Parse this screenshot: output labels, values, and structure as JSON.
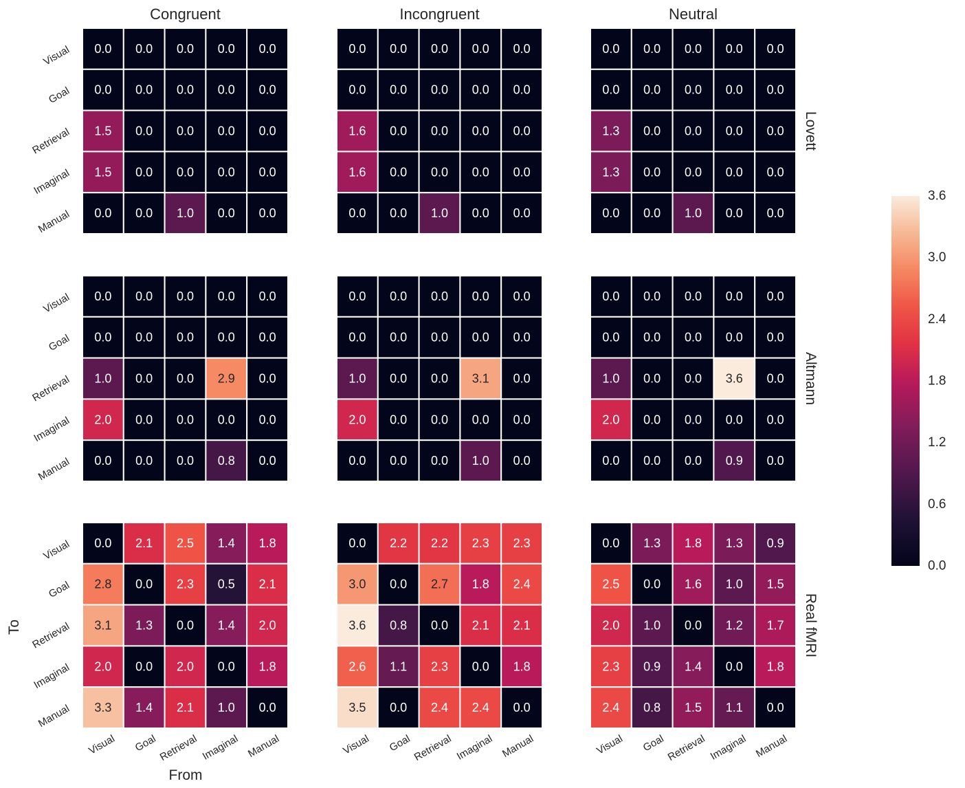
{
  "chart_data": {
    "type": "heatmap",
    "col_titles": [
      "Congruent",
      "Incongruent",
      "Neutral"
    ],
    "row_titles": [
      "Lovett",
      "Altmann",
      "Real fMRI"
    ],
    "x_tick_labels": [
      "Visual",
      "Goal",
      "Retrieval",
      "Imaginal",
      "Manual"
    ],
    "y_tick_labels": [
      "Visual",
      "Goal",
      "Retrieval",
      "Imaginal",
      "Manual"
    ],
    "xlabel": "From",
    "ylabel": "To",
    "colorbar": {
      "min": 0.0,
      "max": 3.6,
      "ticks": [
        "0.0",
        "0.6",
        "1.2",
        "1.8",
        "2.4",
        "3.0",
        "3.6"
      ]
    },
    "panels": [
      {
        "row": 0,
        "col": 0,
        "values": [
          [
            0,
            0,
            0,
            0,
            0
          ],
          [
            0,
            0,
            0,
            0,
            0
          ],
          [
            1.5,
            0,
            0,
            0,
            0
          ],
          [
            1.5,
            0,
            0,
            0,
            0
          ],
          [
            0,
            0,
            1.0,
            0,
            0
          ]
        ]
      },
      {
        "row": 0,
        "col": 1,
        "values": [
          [
            0,
            0,
            0,
            0,
            0
          ],
          [
            0,
            0,
            0,
            0,
            0
          ],
          [
            1.6,
            0,
            0,
            0,
            0
          ],
          [
            1.6,
            0,
            0,
            0,
            0
          ],
          [
            0,
            0,
            1.0,
            0,
            0
          ]
        ]
      },
      {
        "row": 0,
        "col": 2,
        "values": [
          [
            0,
            0,
            0,
            0,
            0
          ],
          [
            0,
            0,
            0,
            0,
            0
          ],
          [
            1.3,
            0,
            0,
            0,
            0
          ],
          [
            1.3,
            0,
            0,
            0,
            0
          ],
          [
            0,
            0,
            1.0,
            0,
            0
          ]
        ]
      },
      {
        "row": 1,
        "col": 0,
        "values": [
          [
            0,
            0,
            0,
            0,
            0
          ],
          [
            0,
            0,
            0,
            0,
            0
          ],
          [
            1.0,
            0,
            0,
            2.9,
            0
          ],
          [
            2.0,
            0,
            0,
            0,
            0
          ],
          [
            0,
            0,
            0,
            0.8,
            0
          ]
        ]
      },
      {
        "row": 1,
        "col": 1,
        "values": [
          [
            0,
            0,
            0,
            0,
            0
          ],
          [
            0,
            0,
            0,
            0,
            0
          ],
          [
            1.0,
            0,
            0,
            3.1,
            0
          ],
          [
            2.0,
            0,
            0,
            0,
            0
          ],
          [
            0,
            0,
            0,
            1.0,
            0
          ]
        ]
      },
      {
        "row": 1,
        "col": 2,
        "values": [
          [
            0,
            0,
            0,
            0,
            0
          ],
          [
            0,
            0,
            0,
            0,
            0
          ],
          [
            1.0,
            0,
            0,
            3.6,
            0
          ],
          [
            2.0,
            0,
            0,
            0,
            0
          ],
          [
            0,
            0,
            0,
            0.9,
            0
          ]
        ]
      },
      {
        "row": 2,
        "col": 0,
        "values": [
          [
            0.0,
            2.1,
            2.5,
            1.4,
            1.8
          ],
          [
            2.8,
            0.0,
            2.3,
            0.5,
            2.1
          ],
          [
            3.1,
            1.3,
            0.0,
            1.4,
            2.0
          ],
          [
            2.0,
            0.0,
            2.0,
            0.0,
            1.8
          ],
          [
            3.3,
            1.4,
            2.1,
            1.0,
            0.0
          ]
        ]
      },
      {
        "row": 2,
        "col": 1,
        "values": [
          [
            0.0,
            2.2,
            2.2,
            2.3,
            2.3
          ],
          [
            3.0,
            0.0,
            2.7,
            1.8,
            2.4
          ],
          [
            3.6,
            0.8,
            0.0,
            2.1,
            2.1
          ],
          [
            2.6,
            1.1,
            2.3,
            0.0,
            1.8
          ],
          [
            3.5,
            0.0,
            2.4,
            2.4,
            0.0
          ]
        ]
      },
      {
        "row": 2,
        "col": 2,
        "values": [
          [
            0.0,
            1.3,
            1.8,
            1.3,
            0.9
          ],
          [
            2.5,
            0.0,
            1.6,
            1.0,
            1.5
          ],
          [
            2.0,
            1.0,
            0.0,
            1.2,
            1.7
          ],
          [
            2.3,
            0.9,
            1.4,
            0.0,
            1.8
          ],
          [
            2.4,
            0.8,
            1.5,
            1.1,
            0.0
          ]
        ]
      }
    ]
  }
}
